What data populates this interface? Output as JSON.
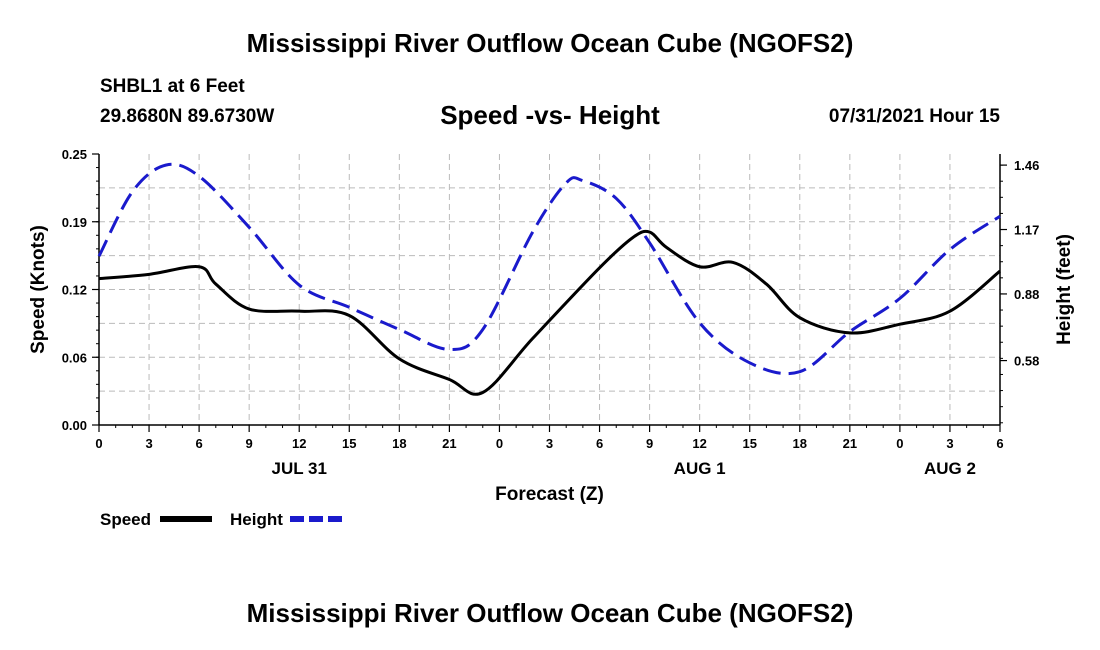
{
  "header": {
    "title_top": "Mississippi River Outflow Ocean Cube (NGOFS2)",
    "station": "SHBL1 at 6 Feet",
    "coords": "29.8680N  89.6730W",
    "chart_title": "Speed -vs- Height",
    "datetime": "07/31/2021 Hour 15",
    "title_bottom": "Mississippi River Outflow Ocean Cube (NGOFS2)"
  },
  "colors": {
    "speed": "#000000",
    "height": "#1a1acc",
    "grid": "#bbbbbb"
  },
  "chart_data": {
    "type": "line",
    "title": "Speed -vs- Height",
    "xlabel": "Forecast (Z)",
    "ylabel": "Speed (Knots)",
    "y2label": "Height (feet)",
    "xlim": [
      0,
      54
    ],
    "ylim": [
      0,
      0.25
    ],
    "y2lim": [
      0.29,
      1.51
    ],
    "x_ticks": [
      0,
      3,
      6,
      9,
      12,
      15,
      18,
      21,
      24,
      27,
      30,
      33,
      36,
      39,
      42,
      45,
      48,
      51,
      54
    ],
    "x_tick_labels": [
      "0",
      "3",
      "6",
      "9",
      "12",
      "15",
      "18",
      "21",
      "0",
      "3",
      "6",
      "9",
      "12",
      "15",
      "18",
      "21",
      "0",
      "3",
      "6"
    ],
    "y_ticks": [
      0,
      0.0625,
      0.125,
      0.1875,
      0.25
    ],
    "y_tick_labels": [
      "0.00",
      "0.06",
      "0.12",
      "0.19",
      "0.25"
    ],
    "y2_ticks": [
      0.58,
      0.88,
      1.17,
      1.46
    ],
    "y2_tick_labels": [
      "0.58",
      "0.88",
      "1.17",
      "1.46"
    ],
    "date_labels": [
      {
        "x": 12,
        "label": "JUL 31"
      },
      {
        "x": 36,
        "label": "AUG 1"
      },
      {
        "x": 51,
        "label": "AUG 2"
      }
    ],
    "series": [
      {
        "name": "Speed",
        "axis": "left",
        "style": "solid",
        "x": [
          0,
          3,
          6,
          7,
          9,
          12,
          15,
          18,
          21,
          23,
          26,
          30,
          32,
          33,
          34,
          36,
          38,
          40,
          42,
          45,
          48,
          51,
          54
        ],
        "values": [
          0.135,
          0.139,
          0.146,
          0.13,
          0.107,
          0.105,
          0.101,
          0.061,
          0.042,
          0.03,
          0.08,
          0.145,
          0.173,
          0.178,
          0.164,
          0.146,
          0.15,
          0.13,
          0.099,
          0.085,
          0.093,
          0.105,
          0.142
        ]
      },
      {
        "name": "Height",
        "axis": "right",
        "style": "dashed",
        "x": [
          0,
          2,
          4,
          6,
          9,
          12,
          15,
          18,
          21,
          23,
          26,
          28,
          29,
          31,
          33,
          36,
          39,
          42,
          45,
          48,
          51,
          54
        ],
        "values": [
          1.05,
          1.34,
          1.46,
          1.41,
          1.18,
          0.92,
          0.82,
          0.72,
          0.63,
          0.72,
          1.16,
          1.38,
          1.39,
          1.31,
          1.11,
          0.75,
          0.57,
          0.53,
          0.71,
          0.86,
          1.08,
          1.23
        ]
      }
    ],
    "legend": [
      {
        "label": "Speed",
        "style": "solid"
      },
      {
        "label": "Height",
        "style": "dashed"
      }
    ],
    "grid": true
  }
}
